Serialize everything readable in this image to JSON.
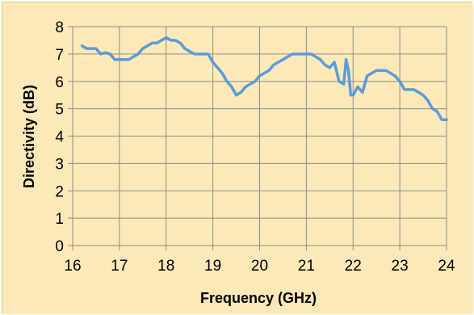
{
  "chart_data": {
    "type": "line",
    "title": "",
    "xlabel": "Frequency (GHz)",
    "ylabel": "Directivity (dB)",
    "xlim": [
      16,
      24
    ],
    "ylim": [
      0,
      8
    ],
    "xticks": [
      16,
      17,
      18,
      19,
      20,
      21,
      22,
      23,
      24
    ],
    "yticks": [
      0,
      1,
      2,
      3,
      4,
      5,
      6,
      7,
      8
    ],
    "grid": true,
    "legend": "none",
    "colors": {
      "line": "#5b9bd5",
      "background": "#fde9b8",
      "grid": "#8c8c8c",
      "frame": "#d8c88a"
    },
    "series": [
      {
        "name": "",
        "x": [
          16.2,
          16.3,
          16.4,
          16.5,
          16.6,
          16.7,
          16.8,
          16.9,
          17.0,
          17.1,
          17.2,
          17.3,
          17.4,
          17.5,
          17.6,
          17.7,
          17.8,
          17.9,
          18.0,
          18.1,
          18.2,
          18.3,
          18.4,
          18.5,
          18.6,
          18.7,
          18.8,
          18.9,
          19.0,
          19.1,
          19.2,
          19.3,
          19.4,
          19.5,
          19.6,
          19.7,
          19.8,
          19.9,
          20.0,
          20.1,
          20.2,
          20.3,
          20.4,
          20.5,
          20.6,
          20.7,
          20.8,
          20.9,
          21.0,
          21.1,
          21.2,
          21.3,
          21.4,
          21.5,
          21.6,
          21.7,
          21.8,
          21.85,
          21.9,
          21.95,
          22.0,
          22.1,
          22.2,
          22.3,
          22.4,
          22.5,
          22.6,
          22.7,
          22.8,
          22.9,
          23.0,
          23.1,
          23.2,
          23.3,
          23.4,
          23.5,
          23.6,
          23.7,
          23.8,
          23.9,
          24.0
        ],
        "y": [
          7.3,
          7.2,
          7.2,
          7.2,
          7.0,
          7.05,
          7.0,
          6.8,
          6.8,
          6.8,
          6.8,
          6.9,
          7.0,
          7.2,
          7.3,
          7.4,
          7.4,
          7.5,
          7.6,
          7.5,
          7.5,
          7.4,
          7.2,
          7.1,
          7.0,
          7.0,
          7.0,
          7.0,
          6.7,
          6.5,
          6.3,
          6.0,
          5.8,
          5.5,
          5.6,
          5.8,
          5.9,
          6.0,
          6.2,
          6.3,
          6.4,
          6.6,
          6.7,
          6.8,
          6.9,
          7.0,
          7.0,
          7.0,
          7.0,
          7.0,
          6.9,
          6.8,
          6.6,
          6.5,
          6.7,
          6.0,
          5.9,
          6.8,
          6.4,
          5.5,
          5.5,
          5.8,
          5.6,
          6.2,
          6.3,
          6.4,
          6.4,
          6.4,
          6.3,
          6.2,
          6.0,
          5.7,
          5.7,
          5.7,
          5.6,
          5.5,
          5.3,
          5.0,
          4.9,
          4.6,
          4.6
        ]
      }
    ]
  }
}
